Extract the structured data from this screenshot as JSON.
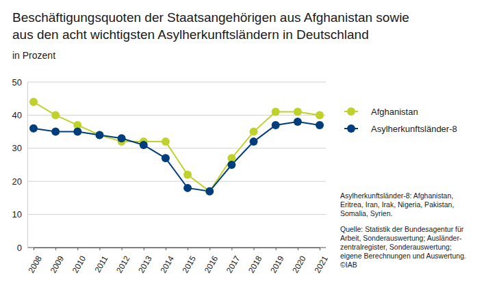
{
  "chart_data": {
    "type": "line",
    "title": [
      "Beschäftigungsquoten der Staatsangehörigen aus Afghanistan sowie",
      "aus den acht wichtigsten Asylherkunftsländern in Deutschland"
    ],
    "subtitle": "in Prozent",
    "categories": [
      "2008",
      "2009",
      "2010",
      "2011",
      "2012",
      "2013",
      "2014",
      "2015",
      "2016",
      "2017",
      "2018",
      "2019",
      "2020",
      "2021"
    ],
    "series": [
      {
        "name": "Afghanistan",
        "color": "#bfd22b",
        "marker": "circle",
        "values": [
          44,
          40,
          37,
          34,
          32,
          32,
          32,
          22,
          17,
          27,
          35,
          41,
          41,
          40
        ]
      },
      {
        "name": "Asylherkunftsländer-8",
        "color": "#003d7c",
        "marker": "circle",
        "values": [
          36,
          35,
          35,
          34,
          33,
          31,
          27,
          18,
          17,
          25,
          32,
          37,
          38,
          37
        ]
      }
    ],
    "ylim": [
      0,
      50
    ],
    "yticks": [
      0,
      10,
      20,
      30,
      40,
      50
    ],
    "grid": true,
    "legend": "right",
    "annotations": [
      [
        "Asylherkunftsländer-8: Afghanistan,",
        "Eritrea, Iran, Irak, Nigeria, Pakistan,",
        "Somalia, Syrien."
      ],
      [
        "Quelle: Statistik der Bundesagentur für",
        "Arbeit, Sonderauswertung; Ausländer-",
        "zentralregister, Sonderauswertung;",
        "eigene Berechnungen und Auswertung.",
        "©IAB"
      ]
    ]
  }
}
